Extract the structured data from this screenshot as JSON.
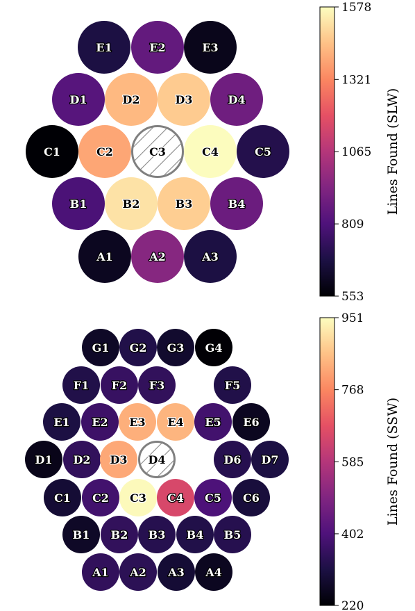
{
  "chart_data": [
    {
      "type": "heatmap",
      "title": "",
      "colormap": "magma",
      "colorbar": {
        "label": "Lines Found (SLW)",
        "min": 553,
        "max": 1578,
        "ticks": [
          553,
          809,
          1065,
          1321,
          1578
        ]
      },
      "cells": [
        {
          "label": "E1",
          "value": 680
        },
        {
          "label": "E2",
          "value": 860
        },
        {
          "label": "E3",
          "value": 600
        },
        {
          "label": "D1",
          "value": 830
        },
        {
          "label": "D2",
          "value": 1430
        },
        {
          "label": "D3",
          "value": 1470
        },
        {
          "label": "D4",
          "value": 890
        },
        {
          "label": "C1",
          "value": 555
        },
        {
          "label": "C2",
          "value": 1390
        },
        {
          "label": "C3",
          "value": null,
          "note": "hatched"
        },
        {
          "label": "C4",
          "value": 1575
        },
        {
          "label": "C5",
          "value": 700
        },
        {
          "label": "B1",
          "value": 800
        },
        {
          "label": "B2",
          "value": 1520
        },
        {
          "label": "B3",
          "value": 1475
        },
        {
          "label": "B4",
          "value": 880
        },
        {
          "label": "A1",
          "value": 610
        },
        {
          "label": "A2",
          "value": 950
        },
        {
          "label": "A3",
          "value": 680
        }
      ]
    },
    {
      "type": "heatmap",
      "title": "",
      "colormap": "magma",
      "colorbar": {
        "label": "Lines Found (SSW)",
        "min": 220,
        "max": 951,
        "ticks": [
          220,
          402,
          585,
          768,
          951
        ]
      },
      "cells": [
        {
          "label": "G1",
          "value": 270
        },
        {
          "label": "G2",
          "value": 320
        },
        {
          "label": "G3",
          "value": 280
        },
        {
          "label": "G4",
          "value": 222
        },
        {
          "label": "F1",
          "value": 320
        },
        {
          "label": "F2",
          "value": 360
        },
        {
          "label": "F3",
          "value": 350
        },
        {
          "label": "F5",
          "value": 320
        },
        {
          "label": "E1",
          "value": 310
        },
        {
          "label": "E2",
          "value": 370
        },
        {
          "label": "E3",
          "value": 830
        },
        {
          "label": "E4",
          "value": 840
        },
        {
          "label": "E5",
          "value": 380
        },
        {
          "label": "E6",
          "value": 260
        },
        {
          "label": "D1",
          "value": 250
        },
        {
          "label": "D2",
          "value": 350
        },
        {
          "label": "D3",
          "value": 820
        },
        {
          "label": "D4",
          "value": null,
          "note": "hatched"
        },
        {
          "label": "D6",
          "value": 330
        },
        {
          "label": "D7",
          "value": 310
        },
        {
          "label": "C1",
          "value": 290
        },
        {
          "label": "C2",
          "value": 380
        },
        {
          "label": "C3",
          "value": 945
        },
        {
          "label": "C4",
          "value": 650
        },
        {
          "label": "C5",
          "value": 400
        },
        {
          "label": "C6",
          "value": 300
        },
        {
          "label": "B1",
          "value": 270
        },
        {
          "label": "B2",
          "value": 350
        },
        {
          "label": "B3",
          "value": 330
        },
        {
          "label": "B4",
          "value": 320
        },
        {
          "label": "B5",
          "value": 330
        },
        {
          "label": "A1",
          "value": 350
        },
        {
          "label": "A2",
          "value": 340
        },
        {
          "label": "A3",
          "value": 290
        },
        {
          "label": "A4",
          "value": 260
        }
      ]
    }
  ]
}
